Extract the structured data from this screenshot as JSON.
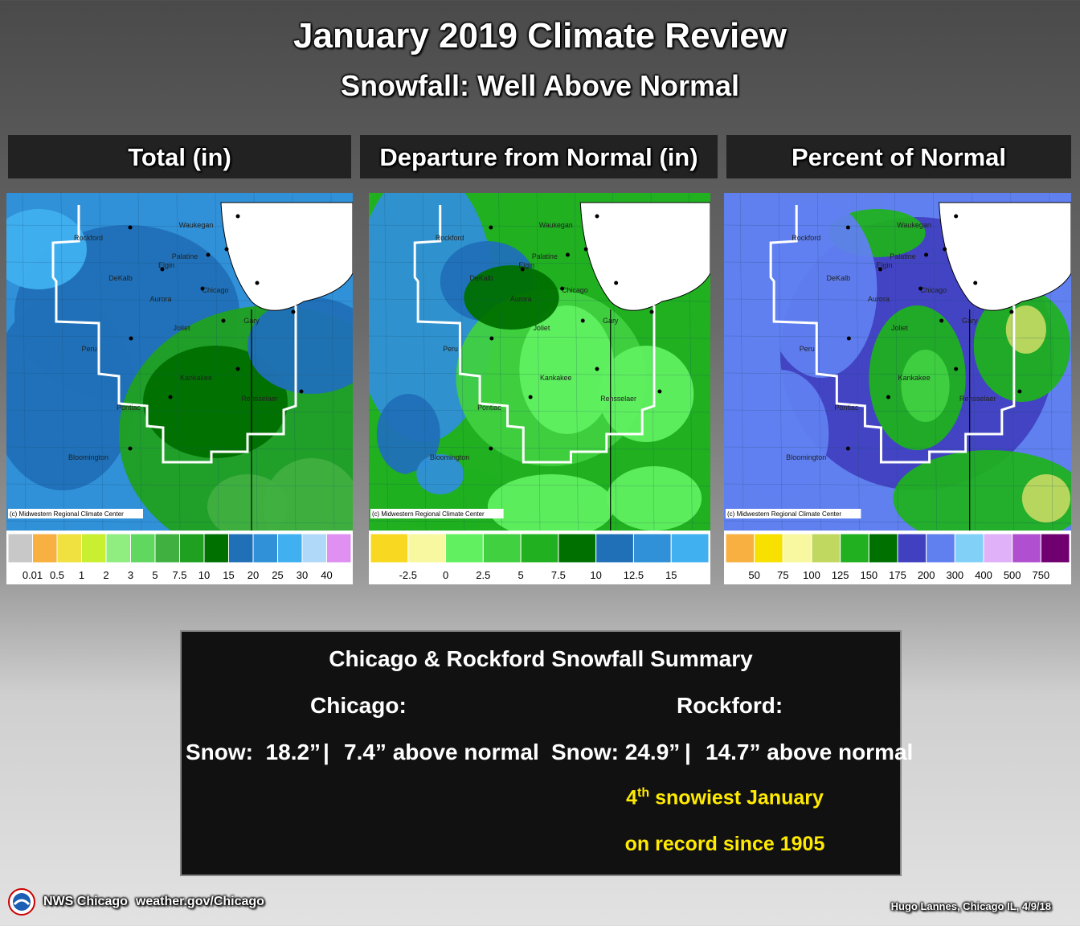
{
  "header": {
    "title": "January 2019 Climate Review",
    "subtitle": "Snowfall: Well Above Normal"
  },
  "panels": [
    {
      "title": "Total (in)",
      "legend": {
        "colors": [
          "#c8c8c8",
          "#f8b040",
          "#f0e040",
          "#c8f030",
          "#90ee80",
          "#60d860",
          "#40b040",
          "#20a020",
          "#007000",
          "#2070b8",
          "#3090d8",
          "#40b0f0",
          "#b0d8f8",
          "#e090f0"
        ],
        "labels": [
          "0.01",
          "0.5",
          "1",
          "2",
          "3",
          "5",
          "7.5",
          "10",
          "15",
          "20",
          "25",
          "30",
          "40"
        ]
      }
    },
    {
      "title": "Departure from Normal (in)",
      "legend": {
        "colors": [
          "#f8d820",
          "#f8f8a0",
          "#60f060",
          "#40d040",
          "#20b020",
          "#007000",
          "#2070b8",
          "#3090d8",
          "#40b0f0"
        ],
        "labels": [
          "-2.5",
          "0",
          "2.5",
          "5",
          "7.5",
          "10",
          "12.5",
          "15"
        ]
      }
    },
    {
      "title": "Percent of Normal",
      "legend": {
        "colors": [
          "#f8b040",
          "#f8e000",
          "#f8f8a0",
          "#c0d860",
          "#20b020",
          "#007000",
          "#4040c0",
          "#6080f0",
          "#80d0f8",
          "#e0b0f8",
          "#b050d0",
          "#700070"
        ],
        "labels": [
          "50",
          "75",
          "100",
          "125",
          "150",
          "175",
          "200",
          "300",
          "400",
          "500",
          "750"
        ]
      }
    }
  ],
  "map_labels": {
    "cities": [
      "Rockford",
      "Waukegan",
      "Palatine",
      "Elgin",
      "DeKalb",
      "Chicago",
      "Aurora",
      "Gary",
      "Joliet",
      "Peru",
      "Kankakee",
      "Rensselaer",
      "Pontiac",
      "Bloomington"
    ],
    "credit": "(c) Midwestern Regional Climate Center"
  },
  "summary": {
    "title": "Chicago & Rockford Snowfall Summary",
    "chicago": {
      "heading": "Chicago:",
      "snow": "Snow:  18.2”",
      "departure": "7.4” above normal"
    },
    "rockford": {
      "heading": "Rockford:",
      "snow": "Snow: 24.9”",
      "departure": "14.7” above normal",
      "rank": "4",
      "rank_suffix": "th",
      "rank_text": " snowiest January",
      "record": "on record since 1905"
    }
  },
  "footer": {
    "office": "NWS Chicago",
    "url": "weather.gov/Chicago",
    "photo_credit": "Hugo Lannes, Chicago IL,  4/9/18"
  }
}
